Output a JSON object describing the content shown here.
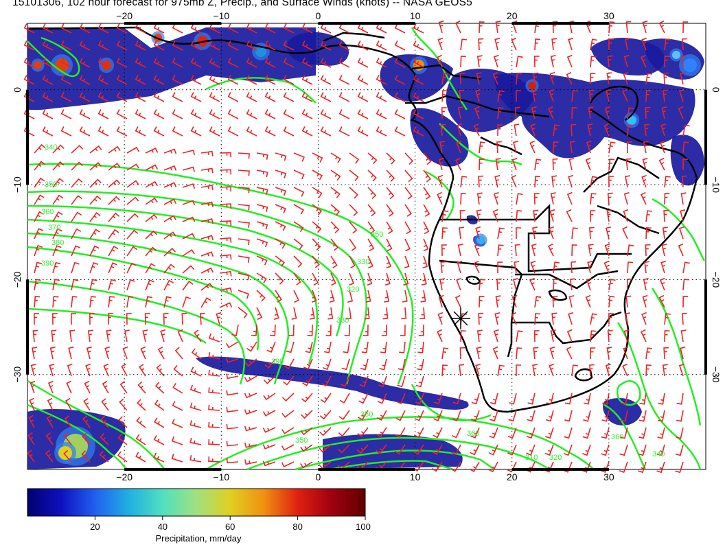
{
  "title": "15101306, 102 hour forecast for 975mb Z, Precip., and Surface Winds (knots) -- NASA GEOS5",
  "colors": {
    "wind_barb": "#ee2222",
    "contour": "#22ee22",
    "coast": "#000000",
    "grid": "#000000",
    "precip_low": "#1a1aa0"
  },
  "map": {
    "x_ticks_top": [
      "−20",
      "−10",
      "0",
      "10",
      "20",
      "30"
    ],
    "x_ticks_bottom": [
      "−20",
      "−10",
      "0",
      "10",
      "20",
      "30"
    ],
    "y_ticks_left": [
      "0",
      "−10",
      "−20",
      "−30"
    ],
    "y_ticks_right": [
      "0",
      "−10",
      "−20",
      "−30"
    ],
    "lon_range": [
      -30,
      40
    ],
    "lat_range": [
      7,
      -40
    ],
    "contour_labels": [
      "340",
      "350",
      "360",
      "370",
      "380",
      "390",
      "350",
      "330",
      "320",
      "390",
      "350",
      "360",
      "330",
      "320",
      "310",
      "350",
      "360",
      "340"
    ],
    "marker": "asterisk-marker"
  },
  "colorbar": {
    "label": "Precipitation, mm/day",
    "ticks": [
      "20",
      "40",
      "60",
      "80",
      "100"
    ],
    "stops": [
      "#000070",
      "#1010c0",
      "#2060f0",
      "#20b0e0",
      "#50e0c0",
      "#a0e080",
      "#e0d020",
      "#f09010",
      "#e02010",
      "#a00010",
      "#600000"
    ]
  }
}
